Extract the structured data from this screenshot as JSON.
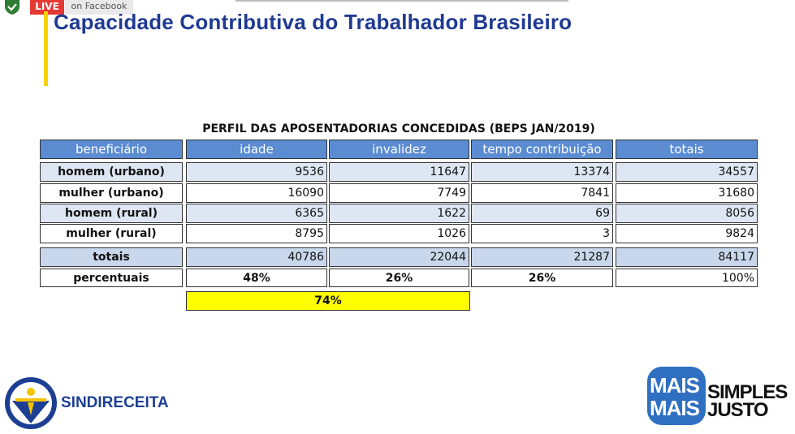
{
  "live": {
    "badge": "LIVE",
    "platform": "on Facebook"
  },
  "header": {
    "title": "Capacidade Contributiva do Trabalhador Brasileiro"
  },
  "table": {
    "title": "PERFIL DAS APOSENTADORIAS CONCEDIDAS (BEPS JAN/2019)",
    "columns": [
      "beneficiário",
      "idade",
      "invalidez",
      "tempo contribuição",
      "totais"
    ],
    "rows": [
      [
        "homem (urbano)",
        9536,
        11647,
        13374,
        34557
      ],
      [
        "mulher (urbano)",
        16090,
        7749,
        7841,
        31680
      ],
      [
        "homem (rural)",
        6365,
        1622,
        69,
        8056
      ],
      [
        "mulher (rural)",
        8795,
        1026,
        3,
        9824
      ]
    ],
    "totals": [
      "totais",
      40786,
      22044,
      21287,
      84117
    ],
    "percentages": [
      "percentuais",
      "48%",
      "26%",
      "26%",
      "100%"
    ],
    "highlight": "74%"
  },
  "logos": {
    "left": "SINDIRECEITA",
    "right": [
      "MAIS",
      "MAIS",
      "SIMPLES",
      "JUSTO"
    ]
  }
}
